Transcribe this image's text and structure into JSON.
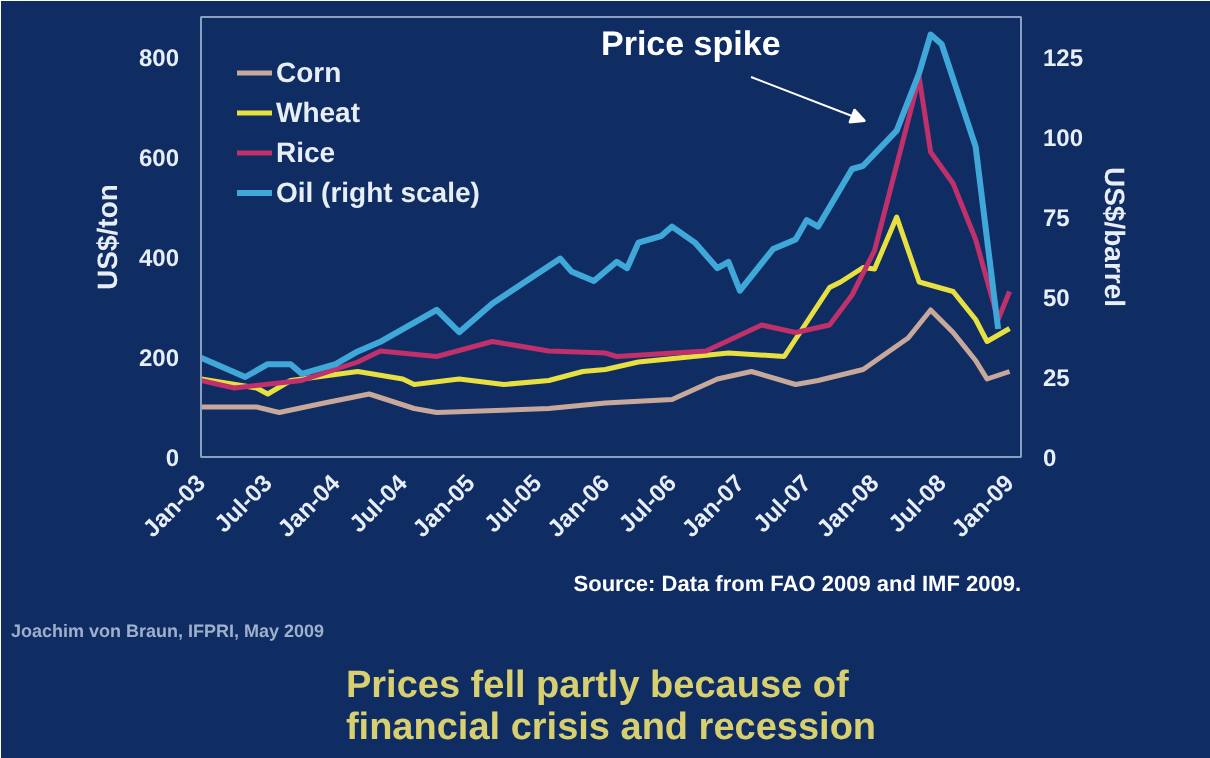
{
  "chart_data": {
    "type": "line",
    "annotations": [
      "Price spike",
      "Prices fell partly because of\nfinancial crisis and recession",
      "Joachim von Braun, IFPRI, May 2009",
      "Source: Data from FAO 2009 and IMF 2009."
    ],
    "ylabel": "US$/ton",
    "y2label": "US$/barrel",
    "xlim": [
      "2003-01",
      "2009-02"
    ],
    "ylim": [
      0,
      880
    ],
    "y2lim": [
      0,
      137.5
    ],
    "yticks": [
      0,
      200,
      400,
      600,
      800
    ],
    "y2ticks": [
      0,
      25,
      50,
      75,
      100,
      125
    ],
    "xticks": [
      {
        "value": "2003-01",
        "label": "Jan-03"
      },
      {
        "value": "2003-07",
        "label": "Jul-03"
      },
      {
        "value": "2004-01",
        "label": "Jan-04"
      },
      {
        "value": "2004-07",
        "label": "Jul-04"
      },
      {
        "value": "2005-01",
        "label": "Jan-05"
      },
      {
        "value": "2005-07",
        "label": "Jul-05"
      },
      {
        "value": "2006-01",
        "label": "Jan-06"
      },
      {
        "value": "2006-07",
        "label": "Jul-06"
      },
      {
        "value": "2007-01",
        "label": "Jan-07"
      },
      {
        "value": "2007-07",
        "label": "Jul-07"
      },
      {
        "value": "2008-01",
        "label": "Jan-08"
      },
      {
        "value": "2008-07",
        "label": "Jul-08"
      },
      {
        "value": "2009-01",
        "label": "Jan-09"
      }
    ],
    "grid": false,
    "legend": "top left",
    "line_style": "solid",
    "marker": "none",
    "series": [
      {
        "name": "Corn",
        "color": "#c8a89a",
        "x": [
          "2003-01",
          "2003-06",
          "2003-08",
          "2003-12",
          "2004-04",
          "2004-08",
          "2004-10",
          "2005-08",
          "2006-01",
          "2006-07",
          "2006-11",
          "2007-02",
          "2007-06",
          "2007-08",
          "2007-12",
          "2008-04",
          "2008-06",
          "2008-08",
          "2008-10",
          "2008-11",
          "2009-01"
        ],
        "values": [
          100,
          100,
          89,
          108,
          126,
          97,
          89,
          97,
          108,
          115,
          156,
          171,
          145,
          153,
          175,
          238,
          294,
          249,
          193,
          156,
          171
        ]
      },
      {
        "name": "Wheat",
        "color": "#e8e040",
        "x": [
          "2003-01",
          "2003-06",
          "2003-07",
          "2003-09",
          "2004-03",
          "2004-07",
          "2004-08",
          "2004-12",
          "2005-04",
          "2005-08",
          "2005-11",
          "2006-01",
          "2006-04",
          "2006-12",
          "2007-05",
          "2007-09",
          "2007-10",
          "2007-12",
          "2008-01",
          "2008-03",
          "2008-05",
          "2008-08",
          "2008-10",
          "2008-11",
          "2009-01"
        ],
        "values": [
          156,
          138,
          126,
          153,
          171,
          156,
          145,
          156,
          145,
          153,
          171,
          175,
          190,
          208,
          201,
          339,
          350,
          379,
          376,
          480,
          350,
          331,
          275,
          231,
          257
        ]
      },
      {
        "name": "Rice",
        "color": "#c0306a",
        "x": [
          "2003-01",
          "2003-04",
          "2003-10",
          "2004-03",
          "2004-05",
          "2004-10",
          "2005-03",
          "2005-08",
          "2006-01",
          "2006-02",
          "2006-10",
          "2007-03",
          "2007-06",
          "2007-09",
          "2007-11",
          "2008-01",
          "2008-03",
          "2008-05",
          "2008-06",
          "2008-08",
          "2008-10",
          "2008-12",
          "2009-01"
        ],
        "values": [
          153,
          138,
          153,
          190,
          212,
          201,
          231,
          212,
          208,
          201,
          212,
          264,
          249,
          264,
          324,
          413,
          584,
          759,
          610,
          547,
          435,
          275,
          331
        ]
      },
      {
        "name": "Oil (right scale)",
        "color": "#40a8d8",
        "axis": "y2",
        "x": [
          "2003-01",
          "2003-05",
          "2003-07",
          "2003-09",
          "2003-10",
          "2004-01",
          "2004-03",
          "2004-05",
          "2004-08",
          "2004-10",
          "2004-12",
          "2005-03",
          "2005-06",
          "2005-09",
          "2005-10",
          "2005-12",
          "2006-02",
          "2006-03",
          "2006-04",
          "2006-06",
          "2006-07",
          "2006-09",
          "2006-11",
          "2006-12",
          "2007-01",
          "2007-04",
          "2007-06",
          "2007-07",
          "2007-08",
          "2007-11",
          "2007-12",
          "2008-03",
          "2008-05",
          "2008-06",
          "2008-07",
          "2008-10",
          "2008-12"
        ],
        "values": [
          31,
          25,
          29,
          29,
          26,
          29,
          33,
          36,
          42,
          46,
          39,
          48,
          55,
          62,
          58,
          55,
          61,
          59,
          67,
          69,
          72,
          67,
          59,
          61,
          52,
          65,
          68,
          74,
          72,
          90,
          91,
          102,
          120,
          132,
          129,
          97,
          40
        ]
      }
    ]
  }
}
